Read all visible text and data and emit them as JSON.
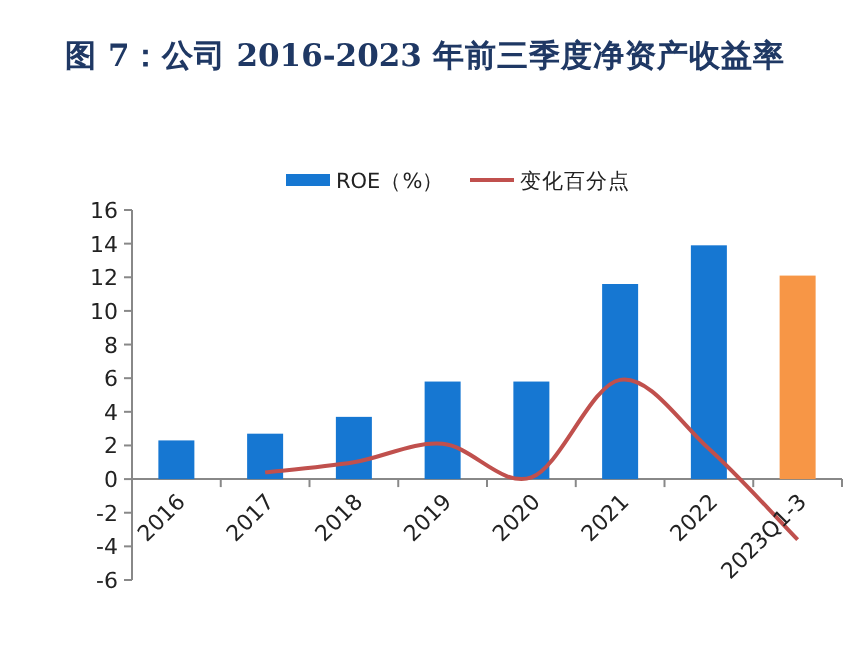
{
  "chart_data": {
    "type": "bar",
    "title": "图 7：公司 2016-2023 年前三季度净资产收益率",
    "categories": [
      "2016",
      "2017",
      "2018",
      "2019",
      "2020",
      "2021",
      "2022",
      "2023Q1-3"
    ],
    "series": [
      {
        "name": "ROE（%）",
        "colors": [
          "#1677d2",
          "#1677d2",
          "#1677d2",
          "#1677d2",
          "#1677d2",
          "#1677d2",
          "#1677d2",
          "#f79646"
        ],
        "values": [
          2.3,
          2.7,
          3.7,
          5.8,
          5.8,
          11.6,
          13.9,
          12.1
        ]
      },
      {
        "name": "变化百分点",
        "type": "line",
        "color": "#c0504d",
        "values": [
          null,
          0.4,
          1.0,
          2.1,
          0.1,
          5.9,
          1.8,
          -3.6
        ]
      }
    ],
    "ylim": [
      -6,
      16
    ],
    "yticks": [
      -6,
      -4,
      -2,
      0,
      2,
      4,
      6,
      8,
      10,
      12,
      14,
      16
    ],
    "legend": "top",
    "grid": false
  }
}
